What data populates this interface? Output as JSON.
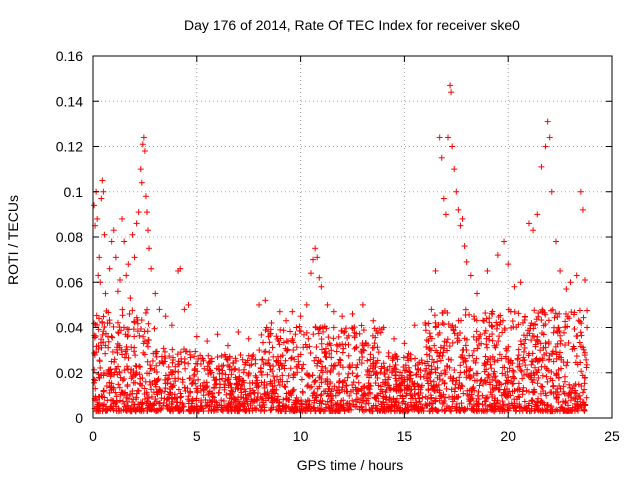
{
  "chart_data": {
    "type": "scatter",
    "title": "Day 176 of 2014, Rate Of TEC Index for receiver ske0",
    "xlabel": "GPS time / hours",
    "ylabel": "ROTI / TECUs",
    "xlim": [
      0,
      25
    ],
    "ylim": [
      0,
      0.16
    ],
    "xticks": [
      "0",
      "5",
      "10",
      "15",
      "20",
      "25"
    ],
    "yticks": [
      "0",
      "0.02",
      "0.04",
      "0.06",
      "0.08",
      "0.1",
      "0.12",
      "0.14",
      "0.16"
    ],
    "grid": true,
    "marker": "+",
    "color": "#ff0000",
    "series": [
      {
        "points": [
          [
            0.05,
            0.094
          ],
          [
            0.1,
            0.085
          ],
          [
            0.15,
            0.1
          ],
          [
            0.2,
            0.088
          ],
          [
            0.25,
            0.063
          ],
          [
            0.3,
            0.071
          ],
          [
            0.35,
            0.06
          ],
          [
            0.4,
            0.097
          ],
          [
            0.45,
            0.105
          ],
          [
            0.5,
            0.1
          ],
          [
            0.55,
            0.081
          ],
          [
            0.6,
            0.055
          ],
          [
            0.7,
            0.042
          ],
          [
            0.8,
            0.066
          ],
          [
            0.9,
            0.078
          ],
          [
            1.0,
            0.083
          ],
          [
            1.1,
            0.071
          ],
          [
            1.2,
            0.056
          ],
          [
            1.3,
            0.061
          ],
          [
            1.4,
            0.088
          ],
          [
            1.5,
            0.078
          ],
          [
            1.6,
            0.063
          ],
          [
            1.7,
            0.068
          ],
          [
            1.8,
            0.053
          ],
          [
            1.9,
            0.081
          ],
          [
            2.0,
            0.071
          ],
          [
            2.1,
            0.086
          ],
          [
            2.2,
            0.091
          ],
          [
            2.3,
            0.11
          ],
          [
            2.35,
            0.104
          ],
          [
            2.4,
            0.121
          ],
          [
            2.45,
            0.124
          ],
          [
            2.5,
            0.118
          ],
          [
            2.55,
            0.098
          ],
          [
            2.6,
            0.091
          ],
          [
            2.65,
            0.083
          ],
          [
            2.7,
            0.075
          ],
          [
            2.8,
            0.066
          ],
          [
            3.0,
            0.055
          ],
          [
            3.2,
            0.048
          ],
          [
            3.5,
            0.045
          ],
          [
            3.8,
            0.041
          ],
          [
            4.1,
            0.065
          ],
          [
            4.2,
            0.066
          ],
          [
            4.4,
            0.048
          ],
          [
            4.6,
            0.05
          ],
          [
            5.0,
            0.036
          ],
          [
            5.5,
            0.034
          ],
          [
            6.0,
            0.037
          ],
          [
            6.5,
            0.032
          ],
          [
            7.0,
            0.038
          ],
          [
            7.5,
            0.035
          ],
          [
            8.0,
            0.05
          ],
          [
            8.3,
            0.052
          ],
          [
            8.6,
            0.042
          ],
          [
            9.0,
            0.047
          ],
          [
            9.3,
            0.043
          ],
          [
            9.6,
            0.047
          ],
          [
            10.0,
            0.045
          ],
          [
            10.3,
            0.05
          ],
          [
            10.5,
            0.064
          ],
          [
            10.6,
            0.07
          ],
          [
            10.7,
            0.075
          ],
          [
            10.8,
            0.071
          ],
          [
            10.9,
            0.062
          ],
          [
            11.0,
            0.058
          ],
          [
            11.3,
            0.05
          ],
          [
            11.6,
            0.047
          ],
          [
            12.0,
            0.045
          ],
          [
            12.5,
            0.046
          ],
          [
            13.0,
            0.05
          ],
          [
            13.5,
            0.043
          ],
          [
            14.0,
            0.04
          ],
          [
            14.5,
            0.035
          ],
          [
            15.0,
            0.033
          ],
          [
            15.5,
            0.041
          ],
          [
            16.0,
            0.042
          ],
          [
            16.3,
            0.048
          ],
          [
            16.5,
            0.065
          ],
          [
            16.7,
            0.124
          ],
          [
            16.8,
            0.115
          ],
          [
            16.9,
            0.097
          ],
          [
            17.0,
            0.09
          ],
          [
            17.1,
            0.124
          ],
          [
            17.2,
            0.147
          ],
          [
            17.25,
            0.144
          ],
          [
            17.3,
            0.12
          ],
          [
            17.4,
            0.11
          ],
          [
            17.5,
            0.1
          ],
          [
            17.6,
            0.092
          ],
          [
            17.7,
            0.085
          ],
          [
            17.8,
            0.088
          ],
          [
            17.9,
            0.076
          ],
          [
            18.0,
            0.069
          ],
          [
            18.2,
            0.063
          ],
          [
            18.5,
            0.055
          ],
          [
            19.0,
            0.065
          ],
          [
            19.5,
            0.072
          ],
          [
            19.8,
            0.078
          ],
          [
            20.0,
            0.068
          ],
          [
            20.3,
            0.058
          ],
          [
            20.6,
            0.06
          ],
          [
            21.0,
            0.086
          ],
          [
            21.2,
            0.083
          ],
          [
            21.4,
            0.09
          ],
          [
            21.6,
            0.111
          ],
          [
            21.8,
            0.12
          ],
          [
            21.9,
            0.131
          ],
          [
            22.0,
            0.124
          ],
          [
            22.1,
            0.1
          ],
          [
            22.3,
            0.078
          ],
          [
            22.5,
            0.065
          ],
          [
            22.8,
            0.057
          ],
          [
            23.0,
            0.06
          ],
          [
            23.3,
            0.063
          ],
          [
            23.5,
            0.1
          ],
          [
            23.6,
            0.092
          ],
          [
            23.7,
            0.061
          ],
          [
            23.8,
            0.04
          ]
        ]
      }
    ]
  }
}
